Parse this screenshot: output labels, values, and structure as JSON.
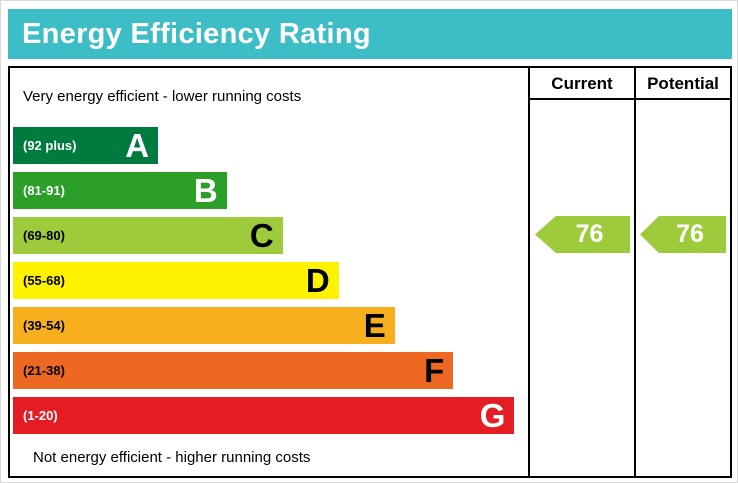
{
  "header": {
    "title": "Energy Efficiency Rating"
  },
  "table": {
    "current_header": "Current",
    "potential_header": "Potential",
    "top_note": "Very energy efficient - lower running costs",
    "bottom_note": "Not energy efficient - higher running costs"
  },
  "colors": {
    "banner_bg": "#3dbec7",
    "banner_text": "#ffffff",
    "border": "#000000"
  },
  "chart_data": {
    "type": "bar",
    "title": "Energy Efficiency Rating",
    "bands": [
      {
        "letter": "A",
        "range": "(92 plus)",
        "min": 92,
        "max": 100,
        "color": "#007b40",
        "text_color": "#ffffff",
        "width_pct": 28.5
      },
      {
        "letter": "B",
        "range": "(81-91)",
        "min": 81,
        "max": 91,
        "color": "#2c9f29",
        "text_color": "#ffffff",
        "width_pct": 42
      },
      {
        "letter": "C",
        "range": "(69-80)",
        "min": 69,
        "max": 80,
        "color": "#9dcb3c",
        "text_color": "#000000",
        "width_pct": 53
      },
      {
        "letter": "D",
        "range": "(55-68)",
        "min": 55,
        "max": 68,
        "color": "#fff200",
        "text_color": "#000000",
        "width_pct": 64
      },
      {
        "letter": "E",
        "range": "(39-54)",
        "min": 39,
        "max": 54,
        "color": "#f7af1d",
        "text_color": "#000000",
        "width_pct": 75
      },
      {
        "letter": "F",
        "range": "(21-38)",
        "min": 21,
        "max": 38,
        "color": "#ed6823",
        "text_color": "#000000",
        "width_pct": 86.5
      },
      {
        "letter": "G",
        "range": "(1-20)",
        "min": 1,
        "max": 20,
        "color": "#e31d23",
        "text_color": "#ffffff",
        "width_pct": 98.5
      }
    ],
    "current": {
      "value": 76,
      "band": "C",
      "color": "#9dcb3c"
    },
    "potential": {
      "value": 76,
      "band": "C",
      "color": "#9dcb3c"
    }
  }
}
